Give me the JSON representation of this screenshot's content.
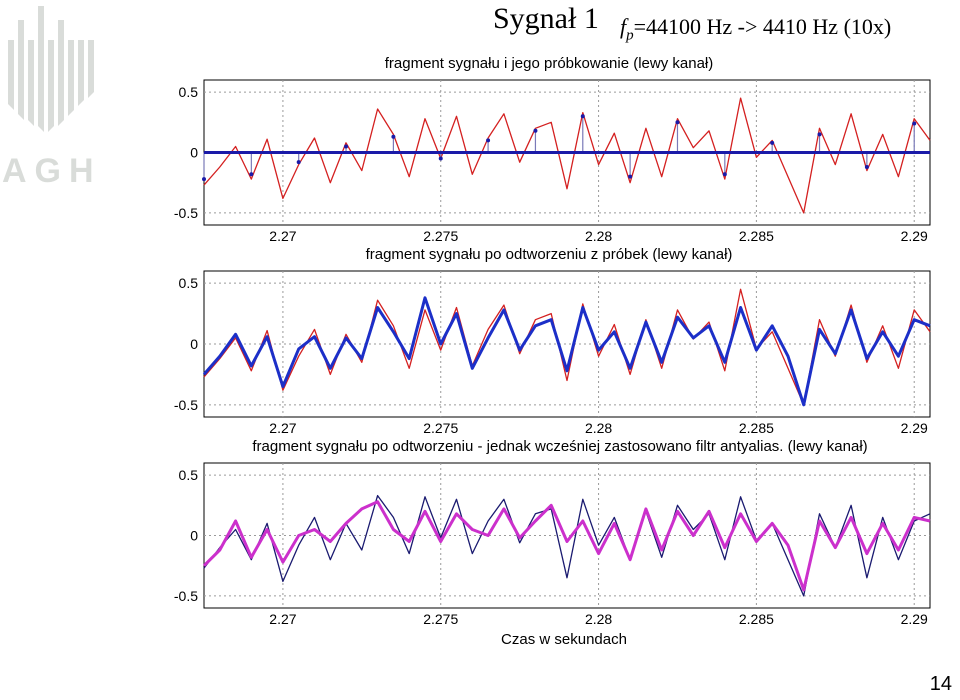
{
  "slide": {
    "title": "Sygnał 1",
    "rate_symbol": "f",
    "rate_subscript": "p",
    "rate_text": "=44100 Hz -> 4410 Hz (10x)",
    "page_number": "14",
    "logo_text": "AGH"
  },
  "colors": {
    "original": "#d42020",
    "sampled": "#1a1aa8",
    "stem": "#7a7ab8",
    "reconstructed": "#1c2fc8",
    "filtered_original": "#1a1a70",
    "antialiased": "#cc30cc",
    "grid": "#9a9a9a",
    "logo": "#d9dcd9"
  },
  "chart_data": [
    {
      "type": "line",
      "title": "fragment sygnału i jego próbkowanie (lewy kanał)",
      "xlabel": "",
      "ylabel": "",
      "xlim": [
        2.2675,
        2.2905
      ],
      "ylim": [
        -0.6,
        0.6
      ],
      "xticks": [
        2.27,
        2.275,
        2.28,
        2.285,
        2.29
      ],
      "yticks": [
        0.5,
        0,
        -0.5
      ],
      "xtick_labels": [
        "2.27",
        "2.275",
        "2.28",
        "2.285",
        "2.29"
      ],
      "ytick_labels": [
        "0.5",
        "0",
        "-0.5"
      ],
      "grid": true,
      "series": [
        {
          "style": "line",
          "color": "original",
          "x": [
            2.2675,
            2.268,
            2.2685,
            2.269,
            2.2695,
            2.27,
            2.2705,
            2.271,
            2.2715,
            2.272,
            2.2725,
            2.273,
            2.2735,
            2.274,
            2.2745,
            2.275,
            2.2755,
            2.276,
            2.2765,
            2.277,
            2.2775,
            2.278,
            2.2785,
            2.279,
            2.2795,
            2.28,
            2.2805,
            2.281,
            2.2815,
            2.282,
            2.2825,
            2.283,
            2.2835,
            2.284,
            2.2845,
            2.285,
            2.2855,
            2.286,
            2.2865,
            2.287,
            2.2875,
            2.288,
            2.2885,
            2.289,
            2.2895,
            2.29,
            2.2905
          ],
          "y": [
            -0.27,
            -0.12,
            0.05,
            -0.22,
            0.11,
            -0.38,
            -0.1,
            0.12,
            -0.25,
            0.08,
            -0.15,
            0.36,
            0.15,
            -0.2,
            0.28,
            -0.05,
            0.3,
            -0.18,
            0.12,
            0.32,
            -0.08,
            0.2,
            0.25,
            -0.3,
            0.33,
            -0.1,
            0.16,
            -0.25,
            0.2,
            -0.2,
            0.28,
            0.04,
            0.18,
            -0.22,
            0.45,
            -0.04,
            0.1,
            -0.2,
            -0.5,
            0.2,
            -0.1,
            0.32,
            -0.15,
            0.15,
            -0.2,
            0.28,
            0.1
          ]
        },
        {
          "style": "stem",
          "color": "sampled",
          "x": [
            2.2675,
            2.269,
            2.2705,
            2.272,
            2.2735,
            2.275,
            2.2765,
            2.278,
            2.2795,
            2.281,
            2.2825,
            2.284,
            2.2855,
            2.287,
            2.2885,
            2.29
          ],
          "y": [
            -0.22,
            -0.18,
            -0.08,
            0.05,
            0.13,
            -0.05,
            0.1,
            0.18,
            0.3,
            -0.2,
            0.25,
            -0.18,
            0.08,
            0.15,
            -0.12,
            0.24
          ]
        }
      ]
    },
    {
      "type": "line",
      "title": "fragment sygnału po odtworzeniu z próbek (lewy kanał)",
      "xlabel": "",
      "ylabel": "",
      "xlim": [
        2.2675,
        2.2905
      ],
      "ylim": [
        -0.6,
        0.6
      ],
      "xticks": [
        2.27,
        2.275,
        2.28,
        2.285,
        2.29
      ],
      "yticks": [
        0.5,
        0,
        -0.5
      ],
      "xtick_labels": [
        "2.27",
        "2.275",
        "2.28",
        "2.285",
        "2.29"
      ],
      "ytick_labels": [
        "0.5",
        "0",
        "-0.5"
      ],
      "grid": true,
      "series": [
        {
          "style": "line",
          "color": "original",
          "x": [
            2.2675,
            2.268,
            2.2685,
            2.269,
            2.2695,
            2.27,
            2.2705,
            2.271,
            2.2715,
            2.272,
            2.2725,
            2.273,
            2.2735,
            2.274,
            2.2745,
            2.275,
            2.2755,
            2.276,
            2.2765,
            2.277,
            2.2775,
            2.278,
            2.2785,
            2.279,
            2.2795,
            2.28,
            2.2805,
            2.281,
            2.2815,
            2.282,
            2.2825,
            2.283,
            2.2835,
            2.284,
            2.2845,
            2.285,
            2.2855,
            2.286,
            2.2865,
            2.287,
            2.2875,
            2.288,
            2.2885,
            2.289,
            2.2895,
            2.29,
            2.2905
          ],
          "y": [
            -0.27,
            -0.12,
            0.05,
            -0.22,
            0.11,
            -0.38,
            -0.1,
            0.12,
            -0.25,
            0.08,
            -0.15,
            0.36,
            0.15,
            -0.2,
            0.28,
            -0.05,
            0.3,
            -0.18,
            0.12,
            0.32,
            -0.08,
            0.2,
            0.25,
            -0.3,
            0.33,
            -0.1,
            0.16,
            -0.25,
            0.2,
            -0.2,
            0.28,
            0.04,
            0.18,
            -0.22,
            0.45,
            -0.04,
            0.1,
            -0.2,
            -0.5,
            0.2,
            -0.1,
            0.32,
            -0.15,
            0.15,
            -0.2,
            0.28,
            0.1
          ]
        },
        {
          "style": "thick-line",
          "color": "reconstructed",
          "x": [
            2.2675,
            2.268,
            2.2685,
            2.269,
            2.2695,
            2.27,
            2.2705,
            2.271,
            2.2715,
            2.272,
            2.2725,
            2.273,
            2.2735,
            2.274,
            2.2745,
            2.275,
            2.2755,
            2.276,
            2.2765,
            2.277,
            2.2775,
            2.278,
            2.2785,
            2.279,
            2.2795,
            2.28,
            2.2805,
            2.281,
            2.2815,
            2.282,
            2.2825,
            2.283,
            2.2835,
            2.284,
            2.2845,
            2.285,
            2.2855,
            2.286,
            2.2865,
            2.287,
            2.2875,
            2.288,
            2.2885,
            2.289,
            2.2895,
            2.29,
            2.2905
          ],
          "y": [
            -0.25,
            -0.1,
            0.08,
            -0.18,
            0.06,
            -0.35,
            -0.04,
            0.06,
            -0.2,
            0.05,
            -0.12,
            0.3,
            0.1,
            -0.12,
            0.38,
            0.0,
            0.25,
            -0.2,
            0.05,
            0.28,
            -0.05,
            0.15,
            0.2,
            -0.22,
            0.3,
            -0.05,
            0.1,
            -0.2,
            0.18,
            -0.15,
            0.22,
            0.05,
            0.15,
            -0.15,
            0.3,
            -0.05,
            0.15,
            -0.1,
            -0.5,
            0.12,
            -0.08,
            0.28,
            -0.12,
            0.1,
            -0.1,
            0.2,
            0.15
          ]
        }
      ]
    },
    {
      "type": "line",
      "title": "fragment sygnału po odtworzeniu - jednak wcześniej zastosowano filtr antyalias. (lewy kanał)",
      "xlabel": "Czas w sekundach",
      "ylabel": "",
      "xlim": [
        2.2675,
        2.2905
      ],
      "ylim": [
        -0.6,
        0.6
      ],
      "xticks": [
        2.27,
        2.275,
        2.28,
        2.285,
        2.29
      ],
      "yticks": [
        0.5,
        0,
        -0.5
      ],
      "xtick_labels": [
        "2.27",
        "2.275",
        "2.28",
        "2.285",
        "2.29"
      ],
      "ytick_labels": [
        "0.5",
        "0",
        "-0.5"
      ],
      "grid": true,
      "series": [
        {
          "style": "line",
          "color": "filtered_original",
          "x": [
            2.2675,
            2.268,
            2.2685,
            2.269,
            2.2695,
            2.27,
            2.2705,
            2.271,
            2.2715,
            2.272,
            2.2725,
            2.273,
            2.2735,
            2.274,
            2.2745,
            2.275,
            2.2755,
            2.276,
            2.2765,
            2.277,
            2.2775,
            2.278,
            2.2785,
            2.279,
            2.2795,
            2.28,
            2.2805,
            2.281,
            2.2815,
            2.282,
            2.2825,
            2.283,
            2.2835,
            2.284,
            2.2845,
            2.285,
            2.2855,
            2.286,
            2.2865,
            2.287,
            2.2875,
            2.288,
            2.2885,
            2.289,
            2.2895,
            2.29,
            2.2905
          ],
          "y": [
            -0.27,
            -0.1,
            0.05,
            -0.2,
            0.1,
            -0.38,
            -0.08,
            0.15,
            -0.2,
            0.1,
            -0.12,
            0.33,
            0.15,
            -0.15,
            0.32,
            -0.02,
            0.3,
            -0.15,
            0.12,
            0.3,
            -0.06,
            0.18,
            0.22,
            -0.35,
            0.3,
            -0.08,
            0.15,
            -0.2,
            0.2,
            -0.18,
            0.25,
            0.05,
            0.18,
            -0.2,
            0.32,
            -0.04,
            0.1,
            -0.2,
            -0.5,
            0.18,
            -0.1,
            0.25,
            -0.35,
            0.15,
            -0.2,
            0.12,
            0.18
          ]
        },
        {
          "style": "thick-line",
          "color": "antialiased",
          "x": [
            2.2675,
            2.268,
            2.2685,
            2.269,
            2.2695,
            2.27,
            2.2705,
            2.271,
            2.2715,
            2.272,
            2.2725,
            2.273,
            2.2735,
            2.274,
            2.2745,
            2.275,
            2.2755,
            2.276,
            2.2765,
            2.277,
            2.2775,
            2.278,
            2.2785,
            2.279,
            2.2795,
            2.28,
            2.2805,
            2.281,
            2.2815,
            2.282,
            2.2825,
            2.283,
            2.2835,
            2.284,
            2.2845,
            2.285,
            2.2855,
            2.286,
            2.2865,
            2.287,
            2.2875,
            2.288,
            2.2885,
            2.289,
            2.2895,
            2.29,
            2.2905
          ],
          "y": [
            -0.25,
            -0.12,
            0.12,
            -0.18,
            0.05,
            -0.22,
            0.0,
            0.05,
            -0.05,
            0.1,
            0.22,
            0.28,
            0.05,
            -0.05,
            0.2,
            -0.05,
            0.18,
            0.05,
            0.0,
            0.22,
            -0.02,
            0.12,
            0.25,
            -0.05,
            0.12,
            -0.15,
            0.1,
            -0.2,
            0.22,
            -0.12,
            0.2,
            0.0,
            0.2,
            -0.1,
            0.18,
            -0.05,
            0.1,
            -0.08,
            -0.45,
            0.12,
            -0.1,
            0.15,
            -0.15,
            0.1,
            -0.12,
            0.15,
            0.12
          ]
        }
      ]
    }
  ]
}
